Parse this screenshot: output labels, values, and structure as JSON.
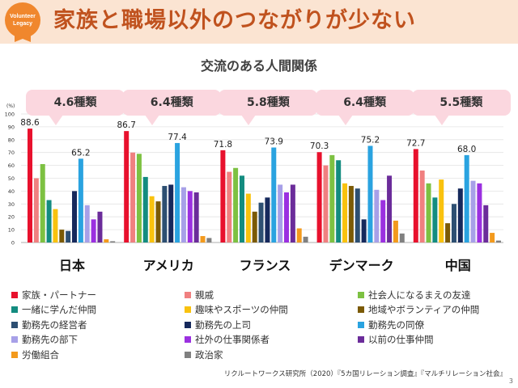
{
  "header": {
    "badge_line1": "Volunteer",
    "badge_line2": "Legacy",
    "title": "家族と職場以外のつながりが少ない"
  },
  "footer": {
    "source": "リクルートワークス研究所（2020）『5カ国リレーション調査』『マルチリレーション社会』",
    "page": "3"
  },
  "colors": {
    "header_bg": "#fbe4d2",
    "title": "#c0521e",
    "callout_bg": "#fbd7df"
  },
  "chart_data": {
    "type": "bar",
    "title": "交流のある人間関係",
    "ylabel": "(%)",
    "ylim": [
      0,
      100
    ],
    "yticks": [
      0,
      10,
      20,
      30,
      40,
      50,
      60,
      70,
      80,
      90,
      100
    ],
    "grid": true,
    "legend_position": "bottom",
    "groups": [
      {
        "country": "日本",
        "callout": "4.6種類",
        "values": [
          88.6,
          50,
          61,
          33,
          26,
          10,
          9,
          40,
          65.2,
          29,
          18,
          24,
          2.5,
          1
        ],
        "labels": {
          "0": "88.6",
          "8": "65.2"
        }
      },
      {
        "country": "アメリカ",
        "callout": "6.4種類",
        "values": [
          86.7,
          70,
          69,
          51,
          36,
          32,
          44,
          45,
          77.4,
          43,
          40,
          39,
          5,
          3.5
        ],
        "labels": {
          "0": "86.7",
          "8": "77.4"
        }
      },
      {
        "country": "フランス",
        "callout": "5.8種類",
        "values": [
          71.8,
          55,
          58,
          52,
          38,
          24,
          31,
          35,
          73.9,
          45,
          39,
          45,
          11,
          4.5
        ],
        "labels": {
          "0": "71.8",
          "8": "73.9"
        }
      },
      {
        "country": "デンマーク",
        "callout": "6.4種類",
        "values": [
          70.3,
          60,
          68,
          64,
          46,
          44,
          42,
          18,
          75.2,
          41,
          33,
          52,
          17,
          7
        ],
        "labels": {
          "0": "70.3",
          "8": "75.2"
        }
      },
      {
        "country": "中国",
        "callout": "5.5種類",
        "values": [
          72.7,
          56,
          46,
          35,
          49,
          15,
          30,
          42,
          68.0,
          48,
          46,
          29,
          7.5,
          1.5
        ],
        "labels": {
          "0": "72.7",
          "8": "68.0"
        }
      }
    ],
    "series": [
      {
        "name": "家族・パートナー",
        "color": "#e8112d"
      },
      {
        "name": "親戚",
        "color": "#f08080"
      },
      {
        "name": "社会人になるまえの友達",
        "color": "#7dc142"
      },
      {
        "name": "一緒に学んだ仲間",
        "color": "#138c80"
      },
      {
        "name": "趣味やスポーツの仲間",
        "color": "#f9c20e"
      },
      {
        "name": "地域やボランティアの仲間",
        "color": "#7b5a05"
      },
      {
        "name": "勤務先の経営者",
        "color": "#2d4f72"
      },
      {
        "name": "勤務先の上司",
        "color": "#16295c"
      },
      {
        "name": "勤務先の同僚",
        "color": "#2aa3e0"
      },
      {
        "name": "勤務先の部下",
        "color": "#a7a0e8"
      },
      {
        "name": "社外の仕事関係者",
        "color": "#9b30e0"
      },
      {
        "name": "以前の仕事仲間",
        "color": "#6b2c9a"
      },
      {
        "name": "労働組合",
        "color": "#f39a1d"
      },
      {
        "name": "政治家",
        "color": "#808080"
      }
    ]
  }
}
